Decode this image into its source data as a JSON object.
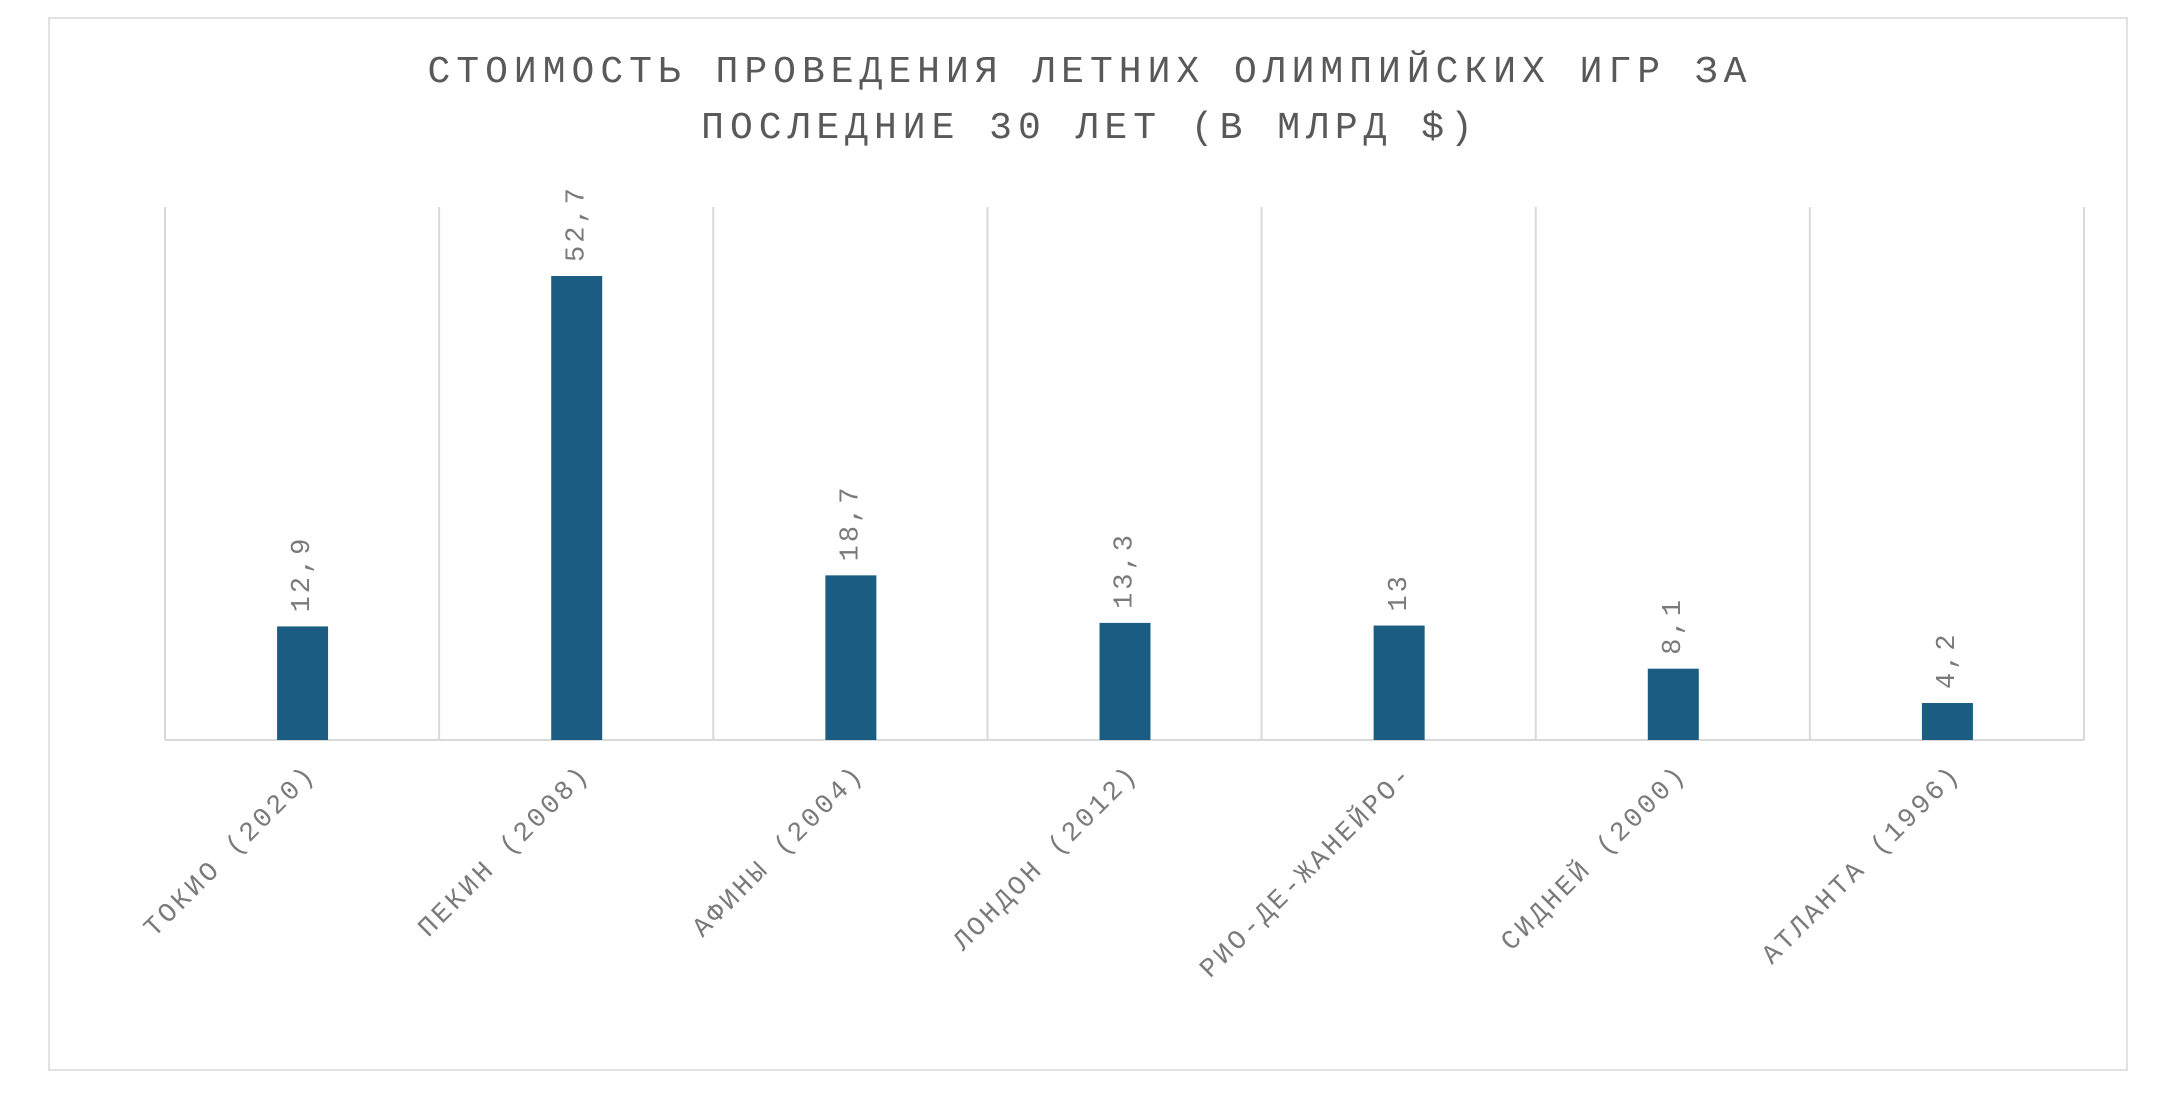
{
  "chart_data": {
    "type": "bar",
    "title": "СТОИМОСТЬ ПРОВЕДЕНИЯ ЛЕТНИХ ОЛИМПИЙСКИХ ИГР ЗА ПОСЛЕДНИЕ 30 ЛЕТ (В МЛРД $)",
    "categories": [
      "ТОКИО (2020)",
      "ПЕКИН (2008)",
      "АФИНЫ (2004)",
      "ЛОНДОН (2012)",
      "РИО-ДЕ-ЖАНЕЙРО-",
      "СИДНЕЙ (2000)",
      "АТЛАНТА (1996)"
    ],
    "values": [
      12.9,
      52.7,
      18.7,
      13.3,
      13,
      8.1,
      4.2
    ],
    "value_labels": [
      "12,9",
      "52,7",
      "18,7",
      "13,3",
      "13",
      "8,1",
      "4,2"
    ],
    "color": "#1a5c82"
  }
}
